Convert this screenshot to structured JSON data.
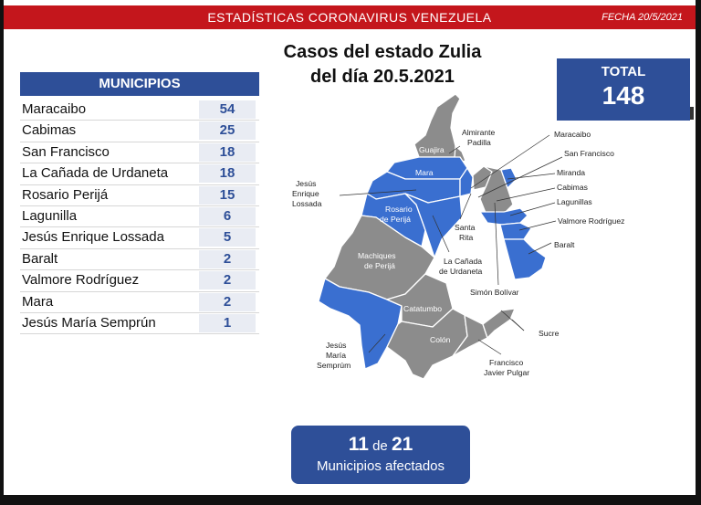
{
  "header": {
    "title": "ESTADÍSTICAS CORONAVIRUS VENEZUELA",
    "date": "FECHA 20/5/2021"
  },
  "main_title": {
    "line1": "Casos del estado Zulia",
    "line2": "del día 20.5.2021"
  },
  "total": {
    "label": "TOTAL",
    "value": "148"
  },
  "municipios": {
    "header": "MUNICIPIOS",
    "rows": [
      {
        "name": "Maracaibo",
        "count": "54"
      },
      {
        "name": "Cabimas",
        "count": "25"
      },
      {
        "name": "San Francisco",
        "count": "18"
      },
      {
        "name": "La Cañada de Urdaneta",
        "count": "18"
      },
      {
        "name": "Rosario Perijá",
        "count": "15"
      },
      {
        "name": "Lagunilla",
        "count": "6"
      },
      {
        "name": "Jesús Enrique Lossada",
        "count": "5"
      },
      {
        "name": "Baralt",
        "count": "2"
      },
      {
        "name": "Valmore Rodríguez",
        "count": "2"
      },
      {
        "name": "Mara",
        "count": "2"
      },
      {
        "name": "Jesús María Semprún",
        "count": "1"
      }
    ]
  },
  "map": {
    "colors": {
      "affected": "#3a6fd0",
      "unaffected": "#8c8c8c",
      "border": "#ffffff"
    },
    "inside_labels": {
      "guajira": "Guajira",
      "mara": "Mara",
      "rosario_1": "Rosario",
      "rosario_2": "de Perijá",
      "machiques_1": "Machiques",
      "machiques_2": "de Perijá",
      "catatumbo": "Catatumbo",
      "colon": "Colón"
    },
    "callouts": {
      "almirante_1": "Almirante",
      "almirante_2": "Padilla",
      "jel_1": "Jesús",
      "jel_2": "Enrique",
      "jel_3": "Lossada",
      "maracaibo": "Maracaibo",
      "san_francisco": "San Francisco",
      "miranda": "Miranda",
      "cabimas": "Cabimas",
      "lagunillas": "Lagunillas",
      "valmore": "Valmore Rodríguez",
      "baralt": "Baralt",
      "santa_rita_1": "Santa",
      "santa_rita_2": "Rita",
      "canada_1": "La Cañada",
      "canada_2": "de Urdaneta",
      "simon_bolivar": "Simón Bolívar",
      "sucre": "Sucre",
      "jms_1": "Jesús",
      "jms_2": "María",
      "jms_3": "Semprúm",
      "fjp_1": "Francisco",
      "fjp_2": "Javier Pulgar"
    }
  },
  "affected": {
    "count": "11",
    "connector": "de",
    "total": "21",
    "label": "Municipios afectados"
  }
}
